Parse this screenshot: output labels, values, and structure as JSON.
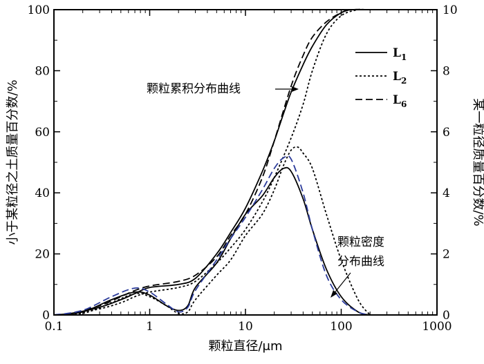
{
  "chart_data": {
    "type": "line",
    "title": "",
    "xlabel": "颗粒直径/μm",
    "ylabel_left": "小于某粒径之土质量百分数/%",
    "ylabel_right": "某一粒径质量百分数/%",
    "x_scale": "log",
    "xlim": [
      0.1,
      1000
    ],
    "ylim_left": [
      0,
      100
    ],
    "ylim_right": [
      0,
      10
    ],
    "x_ticks": [
      0.1,
      1,
      10,
      100,
      1000
    ],
    "x_tick_labels": [
      "0.1",
      "1",
      "10",
      "100",
      "1000"
    ],
    "y_left_ticks": [
      0,
      20,
      40,
      60,
      80,
      100
    ],
    "y_left_tick_labels": [
      "0",
      "20",
      "40",
      "60",
      "80",
      "100"
    ],
    "y_right_ticks": [
      0,
      2,
      4,
      6,
      8,
      10
    ],
    "y_right_tick_labels": [
      "0",
      "2",
      "4",
      "6",
      "8",
      "10"
    ],
    "grid": false,
    "legend_position": "top-right",
    "legend": [
      {
        "label": "L",
        "sub": "1",
        "dash": "solid"
      },
      {
        "label": "L",
        "sub": "2",
        "dash": "dotted"
      },
      {
        "label": "L",
        "sub": "6",
        "dash": "dashed"
      }
    ],
    "annotations": {
      "cumulative": "颗粒累积分布曲线",
      "density_line1": "颗粒密度",
      "density_line2": "分布曲线"
    },
    "series": [
      {
        "name": "L1",
        "group": "cumulative",
        "axis": "left",
        "dash": "solid",
        "color": "#000000",
        "x": [
          0.1,
          0.15,
          0.3,
          0.5,
          0.7,
          1,
          2,
          3,
          5,
          7,
          10,
          15,
          20,
          25,
          30,
          40,
          50,
          70,
          100,
          130,
          200,
          1000
        ],
        "y": [
          0,
          0.5,
          2.5,
          5,
          7,
          9,
          10,
          12,
          20,
          27,
          35,
          47,
          57,
          66,
          73,
          82,
          88,
          95,
          99,
          100,
          100,
          100
        ]
      },
      {
        "name": "L2",
        "group": "cumulative",
        "axis": "left",
        "dash": "dotted",
        "color": "#000000",
        "x": [
          0.1,
          0.15,
          0.3,
          0.5,
          0.7,
          1,
          2,
          3,
          5,
          7,
          10,
          15,
          20,
          30,
          40,
          50,
          70,
          100,
          150,
          200,
          1000
        ],
        "y": [
          0,
          0.3,
          2,
          4,
          6,
          7.5,
          9,
          11,
          17,
          22,
          28,
          37,
          45,
          58,
          69,
          80,
          92,
          98,
          100,
          100,
          100
        ]
      },
      {
        "name": "L6",
        "group": "cumulative",
        "axis": "left",
        "dash": "dashed",
        "color": "#000000",
        "x": [
          0.1,
          0.15,
          0.3,
          0.5,
          0.7,
          1,
          2,
          3,
          5,
          7,
          10,
          15,
          20,
          30,
          40,
          50,
          70,
          100,
          130,
          200,
          1000
        ],
        "y": [
          0,
          0.6,
          3,
          6,
          8,
          9.5,
          11,
          13,
          19,
          26,
          33,
          45,
          57,
          75,
          85,
          91,
          96,
          99,
          100,
          100,
          100
        ]
      },
      {
        "name": "L1",
        "group": "density",
        "axis": "right",
        "dash": "solid",
        "color": "#000000",
        "x": [
          0.1,
          0.2,
          0.4,
          0.7,
          1,
          1.5,
          2,
          2.5,
          3,
          5,
          7,
          10,
          15,
          20,
          25,
          30,
          40,
          50,
          70,
          100,
          150,
          200
        ],
        "y": [
          0,
          0.1,
          0.5,
          0.75,
          0.65,
          0.3,
          0.15,
          0.3,
          0.9,
          1.7,
          2.5,
          3.3,
          3.9,
          4.5,
          4.8,
          4.7,
          3.8,
          2.8,
          1.5,
          0.6,
          0.1,
          0
        ]
      },
      {
        "name": "L2",
        "group": "density",
        "axis": "right",
        "dash": "dotted",
        "color": "#000000",
        "x": [
          0.1,
          0.2,
          0.4,
          0.7,
          1,
          1.5,
          2,
          2.5,
          3,
          5,
          7,
          10,
          15,
          20,
          25,
          30,
          35,
          40,
          50,
          70,
          100,
          150,
          200
        ],
        "y": [
          0,
          0.05,
          0.4,
          0.7,
          0.6,
          0.3,
          0.05,
          0.1,
          0.5,
          1.3,
          1.8,
          2.6,
          3.3,
          4.1,
          4.9,
          5.4,
          5.5,
          5.3,
          4.8,
          3.3,
          1.8,
          0.5,
          0
        ]
      },
      {
        "name": "L6",
        "group": "density",
        "axis": "right",
        "dash": "dashed",
        "color": "#2a3a9a",
        "x": [
          0.1,
          0.2,
          0.4,
          0.7,
          1,
          1.5,
          2,
          2.5,
          3,
          5,
          7,
          10,
          15,
          20,
          25,
          30,
          40,
          50,
          70,
          100,
          150,
          200
        ],
        "y": [
          0,
          0.15,
          0.6,
          0.88,
          0.75,
          0.35,
          0.1,
          0.25,
          0.8,
          1.8,
          2.5,
          3.2,
          4.1,
          4.8,
          5.15,
          5.1,
          4.0,
          2.8,
          1.3,
          0.5,
          0.1,
          0
        ]
      }
    ]
  }
}
